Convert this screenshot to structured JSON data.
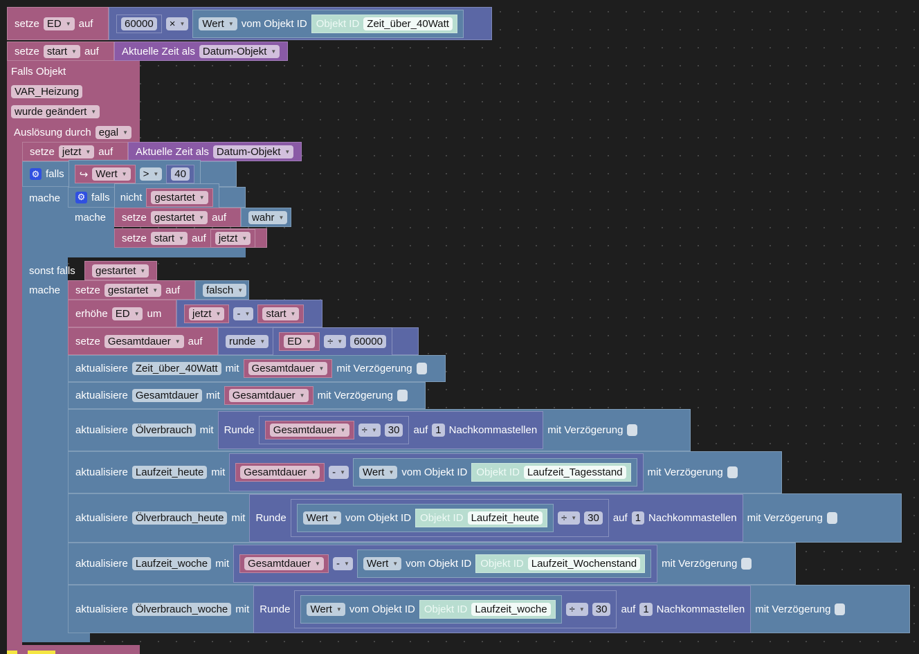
{
  "colors": {
    "variable": "#a55b80",
    "math": "#5b67a5",
    "logic": "#5b80a5",
    "date": "#8a5aa6",
    "object_id": "#b8ddd0",
    "background": "#1e1e1e"
  },
  "r1": {
    "setze": "setze",
    "var": "ED",
    "auf": "auf",
    "num": "60000",
    "op": "×",
    "wert": "Wert",
    "vom": "vom Objekt ID",
    "objid": "Objekt ID",
    "obj": "Zeit_über_40Watt"
  },
  "r2": {
    "setze": "setze",
    "var": "start",
    "auf": "auf",
    "zeit": "Aktuelle Zeit als",
    "fmt": "Datum-Objekt"
  },
  "ev": {
    "falls": "Falls Objekt",
    "obj": "VAR_Heizung",
    "cond": "wurde geändert",
    "trig": "Auslösung durch",
    "trig_val": "egal"
  },
  "r3": {
    "setze": "setze",
    "var": "jetzt",
    "auf": "auf",
    "zeit": "Aktuelle Zeit als",
    "fmt": "Datum-Objekt"
  },
  "if1": {
    "falls": "falls",
    "arrow": "↪",
    "wert": "Wert",
    "op": ">",
    "num": "40",
    "mache": "mache",
    "sonst": "sonst falls",
    "mache2": "mache"
  },
  "if2": {
    "falls": "falls",
    "nicht": "nicht",
    "var": "gestartet",
    "mache": "mache"
  },
  "s1": {
    "setze": "setze",
    "var": "gestartet",
    "auf": "auf",
    "val": "wahr"
  },
  "s2": {
    "setze": "setze",
    "var": "start",
    "auf": "auf",
    "val": "jetzt"
  },
  "elif": {
    "var": "gestartet"
  },
  "s3": {
    "setze": "setze",
    "var": "gestartet",
    "auf": "auf",
    "val": "falsch"
  },
  "s4": {
    "erhoehe": "erhöhe",
    "var": "ED",
    "um": "um",
    "a": "jetzt",
    "op": "-",
    "b": "start"
  },
  "s5": {
    "setze": "setze",
    "var": "Gesamtdauer",
    "auf": "auf",
    "runde": "runde",
    "a": "ED",
    "op": "÷",
    "num": "60000"
  },
  "u1": {
    "akt": "aktualisiere",
    "obj": "Zeit_über_40Watt",
    "mit": "mit",
    "var": "Gesamtdauer",
    "delay": "mit Verzögerung"
  },
  "u2": {
    "akt": "aktualisiere",
    "obj": "Gesamtdauer",
    "mit": "mit",
    "var": "Gesamtdauer",
    "delay": "mit Verzögerung"
  },
  "u3": {
    "akt": "aktualisiere",
    "obj": "Ölverbrauch",
    "mit": "mit",
    "runde": "Runde",
    "var": "Gesamtdauer",
    "op": "÷",
    "num": "30",
    "auf": "auf",
    "dec": "1",
    "nk": "Nachkommastellen",
    "delay": "mit Verzögerung"
  },
  "u4": {
    "akt": "aktualisiere",
    "obj": "Laufzeit_heute",
    "mit": "mit",
    "var": "Gesamtdauer",
    "op": "-",
    "wert": "Wert",
    "vom": "vom Objekt ID",
    "objid": "Objekt ID",
    "id": "Laufzeit_Tagesstand",
    "delay": "mit Verzögerung"
  },
  "u5": {
    "akt": "aktualisiere",
    "obj": "Ölverbrauch_heute",
    "mit": "mit",
    "runde": "Runde",
    "wert": "Wert",
    "vom": "vom Objekt ID",
    "objid": "Objekt ID",
    "id": "Laufzeit_heute",
    "op": "÷",
    "num": "30",
    "auf": "auf",
    "dec": "1",
    "nk": "Nachkommastellen",
    "delay": "mit Verzögerung"
  },
  "u6": {
    "akt": "aktualisiere",
    "obj": "Laufzeit_woche",
    "mit": "mit",
    "var": "Gesamtdauer",
    "op": "-",
    "wert": "Wert",
    "vom": "vom Objekt ID",
    "objid": "Objekt ID",
    "id": "Laufzeit_Wochenstand",
    "delay": "mit Verzögerung"
  },
  "u7": {
    "akt": "aktualisiere",
    "obj": "Ölverbrauch_woche",
    "mit": "mit",
    "runde": "Runde",
    "wert": "Wert",
    "vom": "vom Objekt ID",
    "objid": "Objekt ID",
    "id": "Laufzeit_woche",
    "op": "÷",
    "num": "30",
    "auf": "auf",
    "dec": "1",
    "nk": "Nachkommastellen",
    "delay": "mit Verzögerung"
  }
}
